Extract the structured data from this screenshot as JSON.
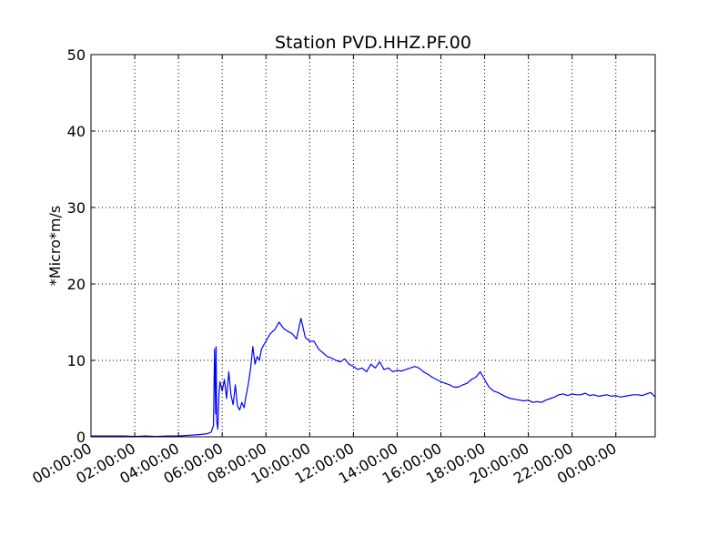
{
  "chart_data": {
    "type": "line",
    "title": "Station PVD.HHZ.PF.00",
    "ylabel": "*Micro*m/s",
    "xlabel": "",
    "ylim": [
      0,
      50
    ],
    "xlim_hours": [
      0,
      25.8
    ],
    "yticks": [
      0,
      10,
      20,
      30,
      40,
      50
    ],
    "ytick_labels": [
      "0",
      "10",
      "20",
      "30",
      "40",
      "50"
    ],
    "xticks_hours": [
      0,
      2,
      4,
      6,
      8,
      10,
      12,
      14,
      16,
      18,
      20,
      22,
      24
    ],
    "xtick_labels": [
      "00:00:00",
      "02:00:00",
      "04:00:00",
      "06:00:00",
      "08:00:00",
      "10:00:00",
      "12:00:00",
      "14:00:00",
      "16:00:00",
      "18:00:00",
      "20:00:00",
      "22:00:00",
      "00:00:00"
    ],
    "grid": true,
    "line_color": "#0000ff",
    "series": [
      {
        "x_hours": [
          0,
          0.5,
          1,
          1.5,
          2,
          2.5,
          3,
          3.5,
          4,
          4.5,
          5,
          5.3,
          5.5,
          5.6,
          5.65,
          5.7,
          5.72,
          5.75,
          5.8,
          5.85,
          5.9,
          6.0,
          6.1,
          6.2,
          6.3,
          6.4,
          6.5,
          6.6,
          6.7,
          6.8,
          6.9,
          7.0,
          7.1,
          7.2,
          7.3,
          7.4,
          7.5,
          7.6,
          7.7,
          7.8,
          8.0,
          8.2,
          8.4,
          8.6,
          8.8,
          9.0,
          9.2,
          9.4,
          9.6,
          9.8,
          10.0,
          10.2,
          10.4,
          10.6,
          10.8,
          11.0,
          11.2,
          11.4,
          11.6,
          11.8,
          12.0,
          12.2,
          12.4,
          12.6,
          12.8,
          13.0,
          13.2,
          13.4,
          13.6,
          13.8,
          14.0,
          14.2,
          14.4,
          14.6,
          14.8,
          15.0,
          15.2,
          15.4,
          15.6,
          15.8,
          16.0,
          16.2,
          16.4,
          16.6,
          16.8,
          17.0,
          17.2,
          17.4,
          17.6,
          17.8,
          18.0,
          18.2,
          18.4,
          18.6,
          18.8,
          19.0,
          19.2,
          19.4,
          19.6,
          19.8,
          20.0,
          20.2,
          20.4,
          20.6,
          20.8,
          21.0,
          21.2,
          21.4,
          21.6,
          21.8,
          22.0,
          22.2,
          22.4,
          22.6,
          22.8,
          23.0,
          23.2,
          23.4,
          23.6,
          23.8,
          24.0,
          24.2,
          24.4,
          24.6,
          24.8,
          25.0,
          25.2,
          25.4,
          25.6,
          25.8
        ],
        "values": [
          0.1,
          0.1,
          0.1,
          0.1,
          0.05,
          0.1,
          0.05,
          0.1,
          0.1,
          0.2,
          0.3,
          0.4,
          0.6,
          1.5,
          11.5,
          3.0,
          11.8,
          2.0,
          1.0,
          5.5,
          7.2,
          6.0,
          7.5,
          5.0,
          8.5,
          5.5,
          4.2,
          6.8,
          4.0,
          3.5,
          4.5,
          3.8,
          5.5,
          7.0,
          9.0,
          11.8,
          9.5,
          10.5,
          10.0,
          11.5,
          12.5,
          13.5,
          14.0,
          15.0,
          14.2,
          13.8,
          13.5,
          12.8,
          15.5,
          13.0,
          12.5,
          12.5,
          11.5,
          11.0,
          10.5,
          10.3,
          10.0,
          9.8,
          10.2,
          9.5,
          9.2,
          8.8,
          9.0,
          8.5,
          9.5,
          9.0,
          9.8,
          8.8,
          9.0,
          8.5,
          8.7,
          8.6,
          8.8,
          9.0,
          9.2,
          9.0,
          8.5,
          8.2,
          7.8,
          7.5,
          7.2,
          7.0,
          6.8,
          6.5,
          6.5,
          6.8,
          7.0,
          7.5,
          7.8,
          8.5,
          7.5,
          6.5,
          6.0,
          5.8,
          5.5,
          5.2,
          5.0,
          4.9,
          4.8,
          4.7,
          4.8,
          4.5,
          4.6,
          4.5,
          4.8,
          5.0,
          5.2,
          5.5,
          5.6,
          5.4,
          5.6,
          5.5,
          5.5,
          5.7,
          5.4,
          5.5,
          5.3,
          5.4,
          5.5,
          5.3,
          5.4,
          5.2,
          5.3,
          5.4,
          5.5,
          5.5,
          5.4,
          5.6,
          5.8,
          5.2
        ]
      }
    ]
  }
}
